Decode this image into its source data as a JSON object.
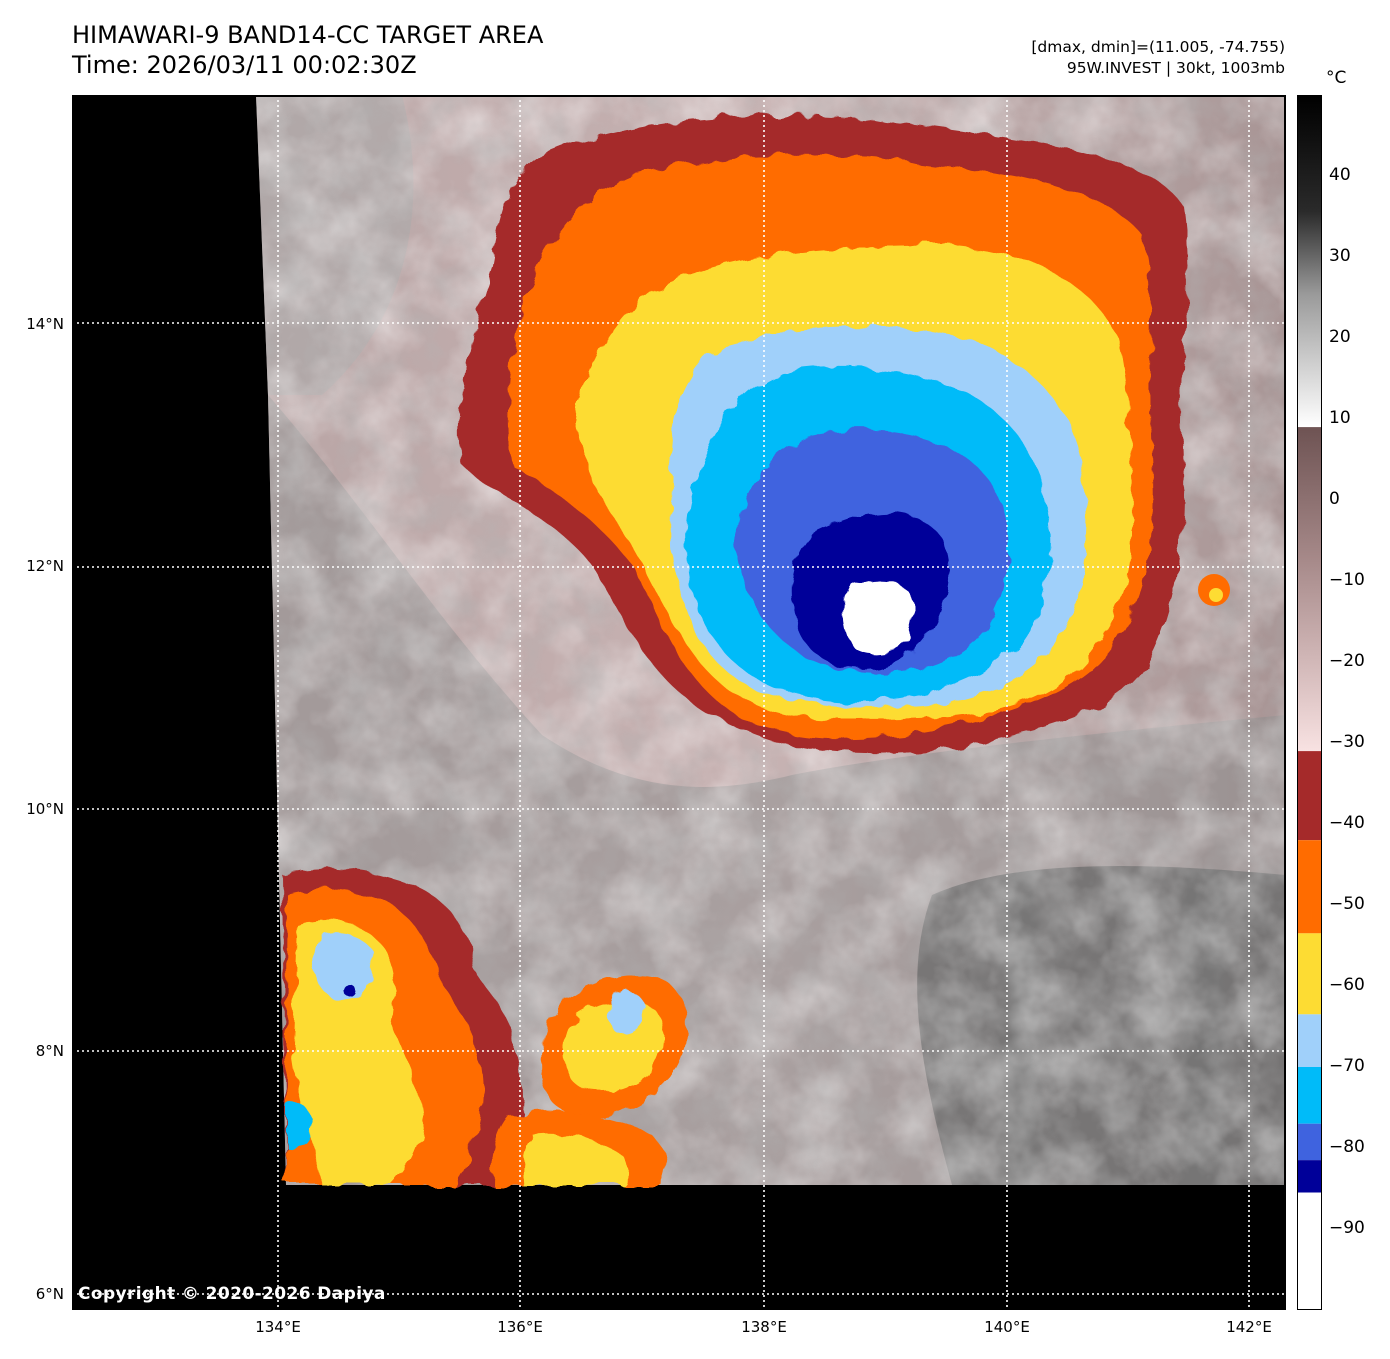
{
  "header": {
    "title": "HIMAWARI-9 BAND14-CC TARGET AREA",
    "time": "Time: 2026/03/11 00:02:30Z",
    "minmax": "[dmax, dmin]=(11.005, -74.755)",
    "storm": "95W.INVEST | 30kt, 1003mb"
  },
  "map": {
    "lat_labels": [
      "14°N",
      "12°N",
      "10°N",
      "8°N",
      "6°N"
    ],
    "lon_labels": [
      "134°E",
      "136°E",
      "138°E",
      "140°E",
      "142°E"
    ],
    "copyright": "Copyright © 2020-2026 Dapiya"
  },
  "colorbar": {
    "unit": "°C",
    "ticks": [
      "40",
      "30",
      "20",
      "10",
      "0",
      "−10",
      "−20",
      "−30",
      "−40",
      "−50",
      "−60",
      "−70",
      "−80",
      "−90"
    ],
    "tick_values": [
      40,
      30,
      20,
      10,
      0,
      -10,
      -20,
      -30,
      -40,
      -50,
      -60,
      -70,
      -80,
      -90
    ],
    "range": [
      -100,
      50
    ],
    "bands": [
      {
        "from": 50,
        "to": 9,
        "colors": [
          "#000000",
          "#555555",
          "#b5b5b5",
          "#ffffff"
        ]
      },
      {
        "from": 9,
        "to": -31,
        "colors": [
          "#6e5353",
          "#a78989",
          "#dcc3c3",
          "#f6dede"
        ]
      },
      {
        "from": -31,
        "to": -42,
        "colors": [
          "#a52a2a"
        ]
      },
      {
        "from": -42,
        "to": -53.5,
        "colors": [
          "#ff6c00"
        ]
      },
      {
        "from": -53.5,
        "to": -63.5,
        "colors": [
          "#fddc33"
        ]
      },
      {
        "from": -63.5,
        "to": -70,
        "colors": [
          "#a0d0fa"
        ]
      },
      {
        "from": -70,
        "to": -77,
        "colors": [
          "#00bbf9"
        ]
      },
      {
        "from": -77,
        "to": -81.5,
        "colors": [
          "#3f63df"
        ]
      },
      {
        "from": -81.5,
        "to": -85.5,
        "colors": [
          "#000099"
        ]
      },
      {
        "from": -85.5,
        "to": -100,
        "colors": [
          "#ffffff"
        ]
      }
    ]
  },
  "colors": {
    "background": "#000000",
    "gridlines": "#ffffff",
    "cold_top": "#ffffff"
  }
}
